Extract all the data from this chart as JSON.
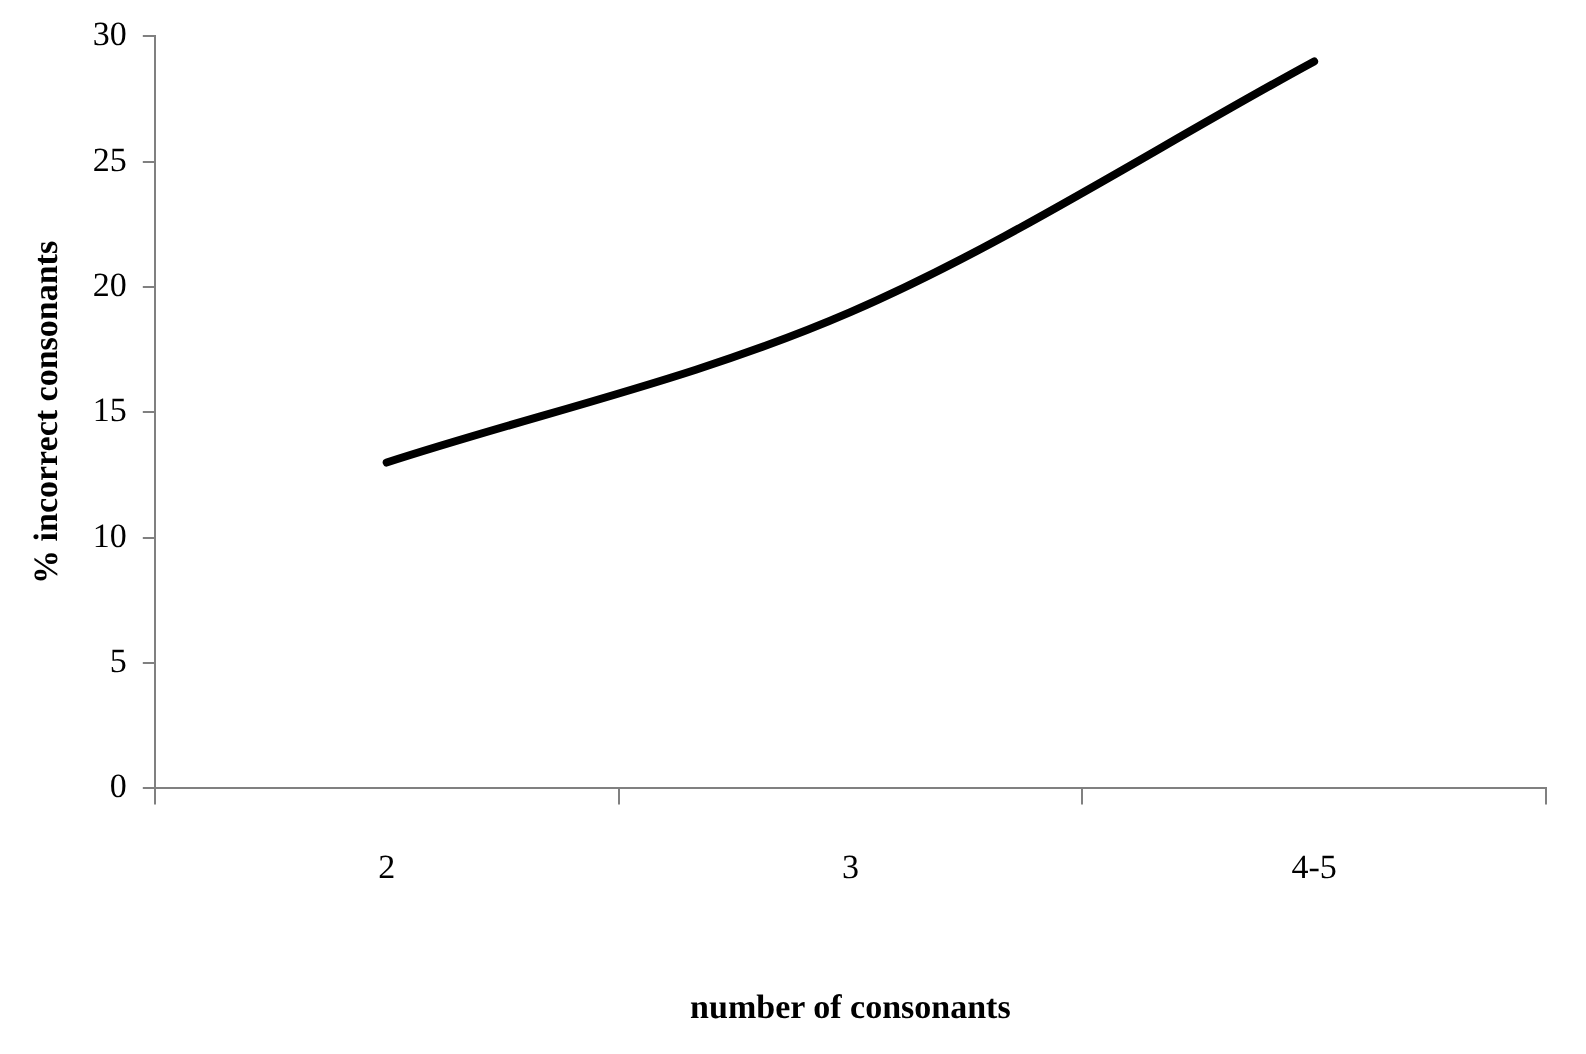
{
  "chart_data": {
    "type": "line",
    "xlabel": "number of consonants",
    "ylabel": "% incorrect consonants",
    "categories": [
      "2",
      "3",
      "4-5"
    ],
    "series": [
      {
        "color": "#000000",
        "values": [
          13,
          19,
          29
        ]
      }
    ],
    "ylim": [
      0,
      30
    ],
    "yticks": [
      0,
      5,
      10,
      15,
      20,
      25,
      30
    ],
    "marker": "none",
    "line_style": "solid",
    "legend": false,
    "grid": false
  }
}
